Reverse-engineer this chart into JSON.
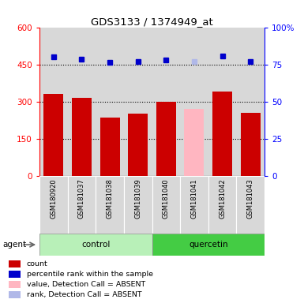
{
  "title": "GDS3133 / 1374949_at",
  "samples": [
    "GSM180920",
    "GSM181037",
    "GSM181038",
    "GSM181039",
    "GSM181040",
    "GSM181041",
    "GSM181042",
    "GSM181043"
  ],
  "groups": [
    "control",
    "control",
    "control",
    "control",
    "quercetin",
    "quercetin",
    "quercetin",
    "quercetin"
  ],
  "count_values": [
    330,
    315,
    235,
    250,
    300,
    270,
    340,
    255
  ],
  "count_absent": [
    false,
    false,
    false,
    false,
    false,
    true,
    false,
    false
  ],
  "rank_values": [
    480,
    472,
    458,
    460,
    468,
    462,
    483,
    462
  ],
  "rank_absent": [
    false,
    false,
    false,
    false,
    false,
    true,
    false,
    false
  ],
  "ylim_left": [
    0,
    600
  ],
  "ylim_right": [
    0,
    100
  ],
  "yticks_left": [
    0,
    150,
    300,
    450,
    600
  ],
  "ytick_labels_left": [
    "0",
    "150",
    "300",
    "450",
    "600"
  ],
  "yticks_right": [
    0,
    25,
    50,
    75,
    100
  ],
  "ytick_labels_right": [
    "0",
    "25",
    "50",
    "75",
    "100%"
  ],
  "bar_color_normal": "#cc0000",
  "bar_color_absent": "#ffb6c1",
  "rank_color_normal": "#0000cc",
  "rank_color_absent": "#b0b8e8",
  "group_control_color": "#b8f0b8",
  "group_quercetin_color": "#44cc44",
  "group_label_control": "control",
  "group_label_quercetin": "quercetin",
  "agent_label": "agent",
  "legend_items": [
    {
      "label": "count",
      "color": "#cc0000"
    },
    {
      "label": "percentile rank within the sample",
      "color": "#0000cc"
    },
    {
      "label": "value, Detection Call = ABSENT",
      "color": "#ffb6c1"
    },
    {
      "label": "rank, Detection Call = ABSENT",
      "color": "#b0b8e8"
    }
  ],
  "grid_color": "#000000",
  "col_bg_color": "#d8d8d8"
}
